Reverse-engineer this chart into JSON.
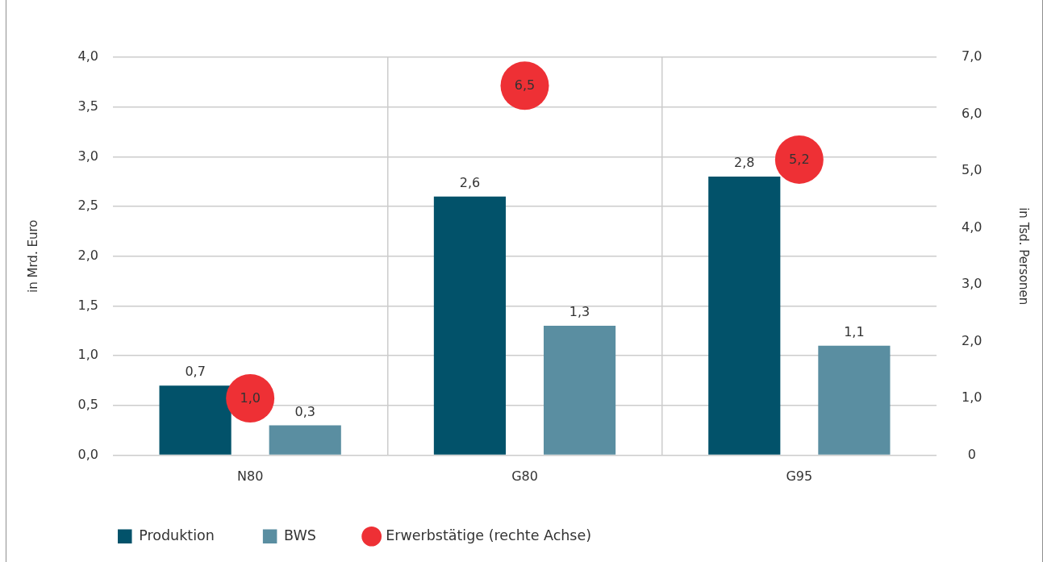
{
  "chart_data": {
    "type": "bar",
    "categories": [
      "N80",
      "G80",
      "G95"
    ],
    "ylabel": "in Mrd. Euro",
    "y2label": "in Tsd. Personen",
    "ylim": [
      0,
      4
    ],
    "yticks": [
      {
        "value": 0,
        "label": "0,0"
      },
      {
        "value": 0.5,
        "label": "0,5"
      },
      {
        "value": 1,
        "label": "1,0"
      },
      {
        "value": 1.5,
        "label": "1,5"
      },
      {
        "value": 2,
        "label": "2,0"
      },
      {
        "value": 2.5,
        "label": "2,5"
      },
      {
        "value": 3,
        "label": "3,0"
      },
      {
        "value": 3.5,
        "label": "3,5"
      },
      {
        "value": 4,
        "label": "4,0"
      }
    ],
    "y2lim": [
      0,
      7
    ],
    "y2ticks": [
      0,
      {
        "value": 1,
        "label": "1,0"
      },
      {
        "value": 2,
        "label": "2,0"
      },
      {
        "value": 3,
        "label": "3,0"
      },
      {
        "value": 4,
        "label": "4,0"
      },
      {
        "value": 5,
        "label": "5,0"
      },
      {
        "value": 6,
        "label": "6,0"
      },
      {
        "value": 7,
        "label": "7,0"
      }
    ],
    "grid": true,
    "legend": "bottom left",
    "series": [
      {
        "name": "Produktion",
        "color": "#02526a",
        "values": [
          0.7,
          2.6,
          2.8
        ],
        "value_labels": [
          "0,7",
          "2,6",
          "2,8"
        ]
      },
      {
        "name": "BWS",
        "color": "#5a8ea1",
        "values": [
          0.3,
          1.3,
          1.1
        ],
        "value_labels": [
          "0,3",
          "1,3",
          "1,1"
        ]
      },
      {
        "name": "Erwerbstätige (rechte Achse)",
        "type": "scatter",
        "axis": "y2",
        "marker": "circle",
        "color": "#ee3035",
        "x": [
          "N80",
          "G80",
          "G95"
        ],
        "values": [
          1.0,
          6.5,
          5.2
        ],
        "value_labels": [
          "1,0",
          "6,5",
          "5,2"
        ]
      }
    ]
  }
}
